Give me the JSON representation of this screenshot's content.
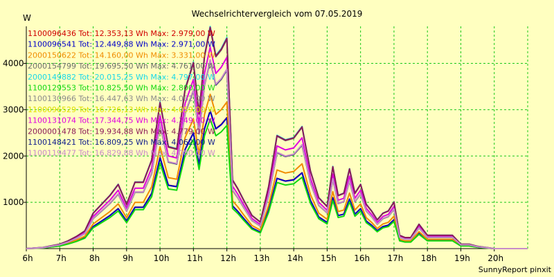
{
  "chart_data": {
    "type": "line",
    "title": "Wechselrichtervergleich vom 07.05.2019",
    "ylabel": "W",
    "footer": "SunnyReport pinxit",
    "grid": true,
    "legend_position": "top-left",
    "xlim": [
      6,
      21
    ],
    "ylim": [
      0,
      4800
    ],
    "x_ticks": [
      {
        "label": "6h",
        "value": 6
      },
      {
        "label": "7h",
        "value": 7
      },
      {
        "label": "8h",
        "value": 8
      },
      {
        "label": "9h",
        "value": 9
      },
      {
        "label": "10h",
        "value": 10
      },
      {
        "label": "11h",
        "value": 11
      },
      {
        "label": "12h",
        "value": 12
      },
      {
        "label": "13h",
        "value": 13
      },
      {
        "label": "14h",
        "value": 14
      },
      {
        "label": "15h",
        "value": 15
      },
      {
        "label": "16h",
        "value": 16
      },
      {
        "label": "17h",
        "value": 17
      },
      {
        "label": "18h",
        "value": 18
      },
      {
        "label": "19h",
        "value": 19
      },
      {
        "label": "20h",
        "value": 20
      }
    ],
    "y_ticks": [
      {
        "label": "1000",
        "value": 1000
      },
      {
        "label": "2000",
        "value": 2000
      },
      {
        "label": "3000",
        "value": 3000
      },
      {
        "label": "4000",
        "value": 4000
      }
    ],
    "x": [
      6.0,
      6.5,
      7.0,
      7.25,
      7.5,
      7.75,
      8.0,
      8.25,
      8.5,
      8.75,
      9.0,
      9.25,
      9.5,
      9.75,
      10.0,
      10.25,
      10.5,
      10.75,
      11.0,
      11.17,
      11.33,
      11.5,
      11.67,
      11.83,
      12.0,
      12.17,
      12.33,
      12.5,
      12.75,
      13.0,
      13.25,
      13.5,
      13.75,
      14.0,
      14.25,
      14.5,
      14.75,
      15.0,
      15.17,
      15.33,
      15.5,
      15.67,
      15.83,
      16.0,
      16.17,
      16.33,
      16.5,
      16.67,
      16.83,
      17.0,
      17.17,
      17.33,
      17.5,
      17.75,
      18.0,
      18.25,
      18.5,
      18.75,
      19.0,
      19.25,
      19.5,
      19.75,
      20.0,
      20.25,
      20.5,
      20.75,
      21.0
    ],
    "series": [
      {
        "name": "1100096436 Tot: 12.353,13 Wh Max: 2.979,00 W",
        "color": "#d00000",
        "max": 2979
      },
      {
        "name": "1100096541 Tot: 12.449,88 Wh Max: 2.971,00 W",
        "color": "#0000c8",
        "max": 2971
      },
      {
        "name": "2000150622 Tot: 14.160,00 Wh Max: 3.331,00 W",
        "color": "#f08c00",
        "max": 3331
      },
      {
        "name": "2000154799 Tot: 19.695,50 Wh Max: 4.761,00 W",
        "color": "#6e6e6e",
        "max": 4761
      },
      {
        "name": "2000149882 Tot: 20.015,25 Wh Max: 4.797,00 W",
        "color": "#18d8e8",
        "max": 4797
      },
      {
        "name": "1100129553 Tot: 10.825,50 Wh Max: 2.800,00 W",
        "color": "#10d810",
        "max": 2800
      },
      {
        "name": "1100130966 Tot: 16.447,63 Wh Max: 4.062,00 W",
        "color": "#8c8c8c",
        "max": 4062
      },
      {
        "name": "1100096529 Tot: 16.726,13 Wh Max: 4.059,00 W",
        "color": "#e0e000",
        "max": 4059
      },
      {
        "name": "1100131074 Tot: 17.344,75 Wh Max: 4.349,00 W",
        "color": "#e000e0",
        "max": 4349
      },
      {
        "name": "2000001478 Tot: 19.934,88 Wh Max: 4.779,00 W",
        "color": "#8c1858",
        "max": 4779
      },
      {
        "name": "1100148421 Tot: 16.809,25 Wh Max: 4.062,00 W",
        "color": "#101c8c",
        "max": 4062
      },
      {
        "name": "1100119477 Tot: 16.829,88 Wh Max: 4.080,00 W",
        "color": "#c88cc8",
        "max": 4080
      }
    ]
  }
}
